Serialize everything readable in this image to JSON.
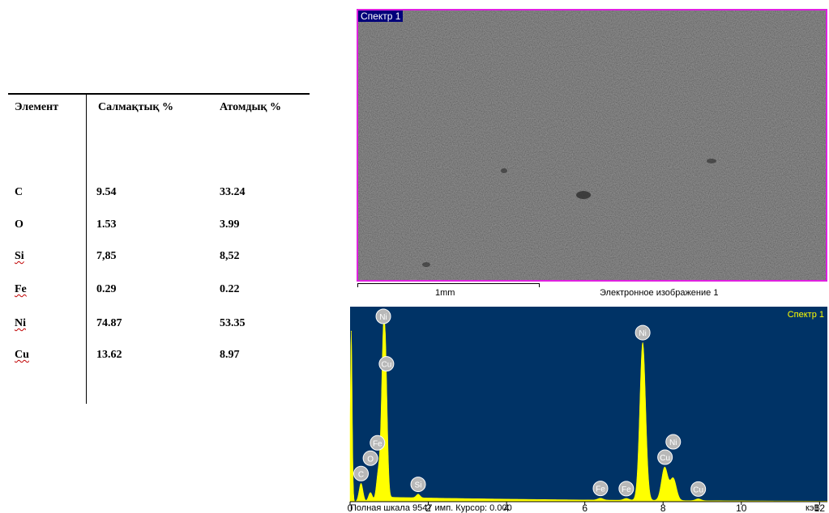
{
  "table": {
    "headers": {
      "element": "Элемент",
      "weight": "Салмақтық %",
      "atomic": "Атомдық %"
    },
    "rows": [
      {
        "element": "C",
        "weight": "9.54",
        "atomic": "33.24"
      },
      {
        "element": "O",
        "weight": "1.53",
        "atomic": "3.99"
      },
      {
        "element": "Si",
        "weight": "7,85",
        "atomic": "8,52"
      },
      {
        "element": "Fe",
        "weight": "0.29",
        "atomic": "0.22"
      },
      {
        "element": "Ni",
        "weight": "74.87",
        "atomic": "53.35"
      },
      {
        "element": "Cu",
        "weight": "13.62",
        "atomic": "8.97"
      }
    ]
  },
  "sem_image": {
    "label": "Спектр 1",
    "scale_bar_text": "1mm",
    "caption": "Электронное изображение 1"
  },
  "chart_data": {
    "type": "line",
    "title": "Спектр 1",
    "xlabel": "кэВ",
    "xlim": [
      0,
      12.2
    ],
    "ylim": [
      0,
      1
    ],
    "ticks": [
      0,
      2,
      4,
      6,
      8,
      10,
      12
    ],
    "colors": {
      "background": "#003366",
      "fill": "#ffff00",
      "label_text": "#ffff00"
    },
    "peak_labels": [
      {
        "el": "C",
        "x": 0.28
      },
      {
        "el": "O",
        "x": 0.52
      },
      {
        "el": "Fe",
        "x": 0.7
      },
      {
        "el": "Cu",
        "x": 0.93
      },
      {
        "el": "Ni",
        "x": 0.85
      },
      {
        "el": "Si",
        "x": 1.74
      },
      {
        "el": "Fe",
        "x": 6.4
      },
      {
        "el": "Fe",
        "x": 7.06
      },
      {
        "el": "Ni",
        "x": 7.48
      },
      {
        "el": "Cu",
        "x": 8.05
      },
      {
        "el": "Ni",
        "x": 8.26
      },
      {
        "el": "Cu",
        "x": 8.9
      }
    ],
    "peaks": [
      {
        "x": 0.03,
        "h": 0.93,
        "w": 0.025
      },
      {
        "x": 0.28,
        "h": 0.1,
        "w": 0.05
      },
      {
        "x": 0.52,
        "h": 0.05,
        "w": 0.05
      },
      {
        "x": 0.72,
        "h": 0.15,
        "w": 0.05
      },
      {
        "x": 0.86,
        "h": 0.95,
        "w": 0.055
      },
      {
        "x": 0.93,
        "h": 0.25,
        "w": 0.04
      },
      {
        "x": 1.74,
        "h": 0.02,
        "w": 0.05
      },
      {
        "x": 6.4,
        "h": 0.01,
        "w": 0.07
      },
      {
        "x": 7.06,
        "h": 0.01,
        "w": 0.07
      },
      {
        "x": 7.48,
        "h": 0.86,
        "w": 0.075
      },
      {
        "x": 8.04,
        "h": 0.18,
        "w": 0.08
      },
      {
        "x": 8.26,
        "h": 0.12,
        "w": 0.08
      },
      {
        "x": 8.9,
        "h": 0.01,
        "w": 0.07
      }
    ],
    "status": {
      "left_prefix": "Полная шкала 9547 имп. Курсор: 0.000",
      "right": "кэВ"
    }
  }
}
